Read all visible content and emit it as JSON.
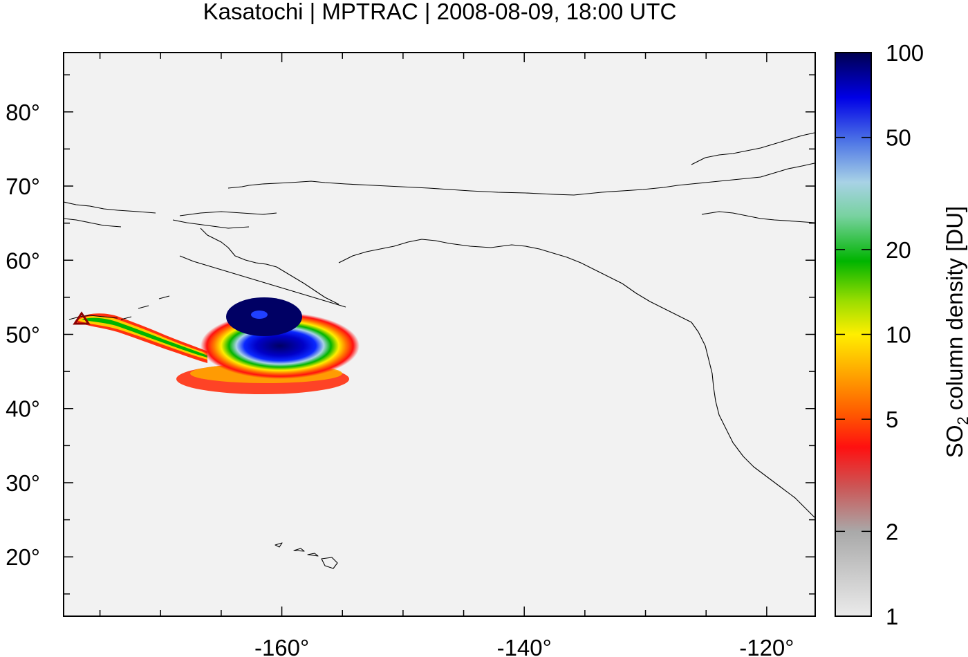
{
  "title": "Kasatochi | MPTRAC | 2008-08-09, 18:00 UTC",
  "chart_data": {
    "type": "heatmap",
    "projection": "lon-lat (plate carree)",
    "xlim": [
      -178,
      -116
    ],
    "ylim": [
      12,
      88
    ],
    "x_ticks": [
      -160,
      -140,
      -120
    ],
    "x_tick_labels": [
      "-160°",
      "-140°",
      "-120°"
    ],
    "y_ticks": [
      20,
      30,
      40,
      50,
      60,
      70,
      80
    ],
    "y_tick_labels": [
      "20°",
      "30°",
      "40°",
      "50°",
      "60°",
      "70°",
      "80°"
    ],
    "colorbar": {
      "label_main": "SO",
      "label_sub": "2",
      "label_rest": " column density [DU]",
      "scale": "log",
      "range": [
        1,
        100
      ],
      "ticks": [
        1,
        2,
        5,
        10,
        20,
        50,
        100
      ],
      "tick_labels": [
        "1",
        "2",
        "5",
        "10",
        "20",
        "50",
        "100"
      ]
    },
    "volcano": {
      "name_marker": "triangle",
      "lon": -175.5,
      "lat": 52.2,
      "color": "#8b0000"
    },
    "plume_core_max_DU": 100,
    "colors": {
      "background": "#f2f2f2",
      "coastline": "#000000"
    }
  }
}
